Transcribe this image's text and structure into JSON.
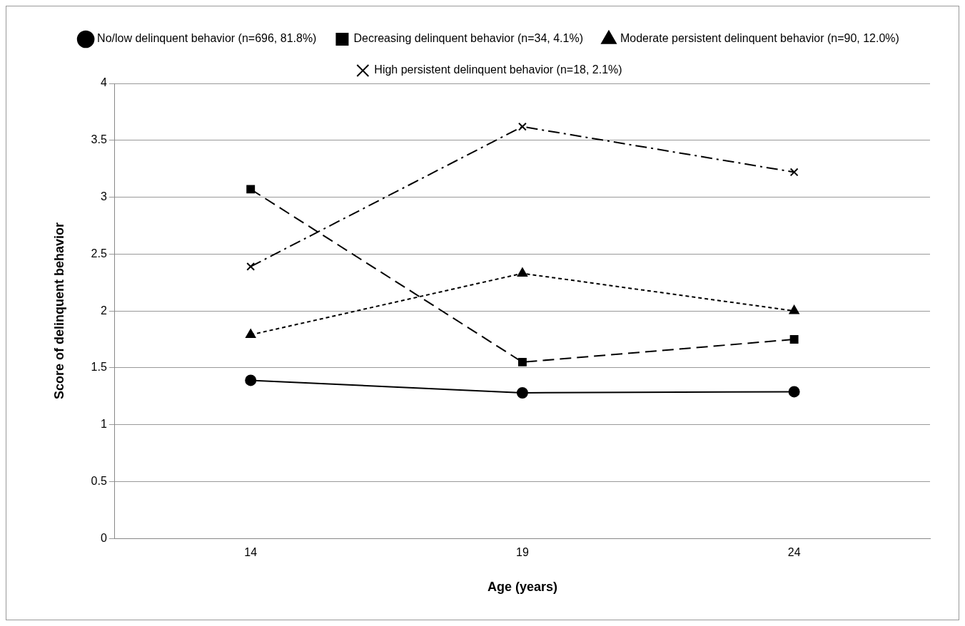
{
  "chart_data": {
    "type": "line",
    "xlabel": "Age (years)",
    "ylabel": "Score of delinquent behavior",
    "categories": [
      "14",
      "19",
      "24"
    ],
    "series": [
      {
        "name": "No/low delinquent behavior (n=696, 81.8%)",
        "color": "#000000",
        "marker": "circle",
        "line_style": "solid",
        "values": [
          1.39,
          1.28,
          1.29
        ]
      },
      {
        "name": "Decreasing delinquent behavior (n=34, 4.1%)",
        "color": "#000000",
        "marker": "square",
        "line_style": "dashed",
        "values": [
          3.07,
          1.55,
          1.75
        ]
      },
      {
        "name": "Moderate persistent delinquent behavior (n=90, 12.0%)",
        "color": "#000000",
        "marker": "triangle",
        "line_style": "dotted",
        "values": [
          1.79,
          2.33,
          2.0
        ]
      },
      {
        "name": "High persistent delinquent behavior (n=18, 2.1%)",
        "color": "#000000",
        "marker": "cross",
        "line_style": "dashdot",
        "values": [
          2.39,
          3.62,
          3.22
        ]
      }
    ],
    "ylim": [
      0,
      4
    ],
    "yticks": [
      0,
      0.5,
      1,
      1.5,
      2,
      2.5,
      3,
      3.5,
      4
    ],
    "grid": "y",
    "legend": "top"
  }
}
